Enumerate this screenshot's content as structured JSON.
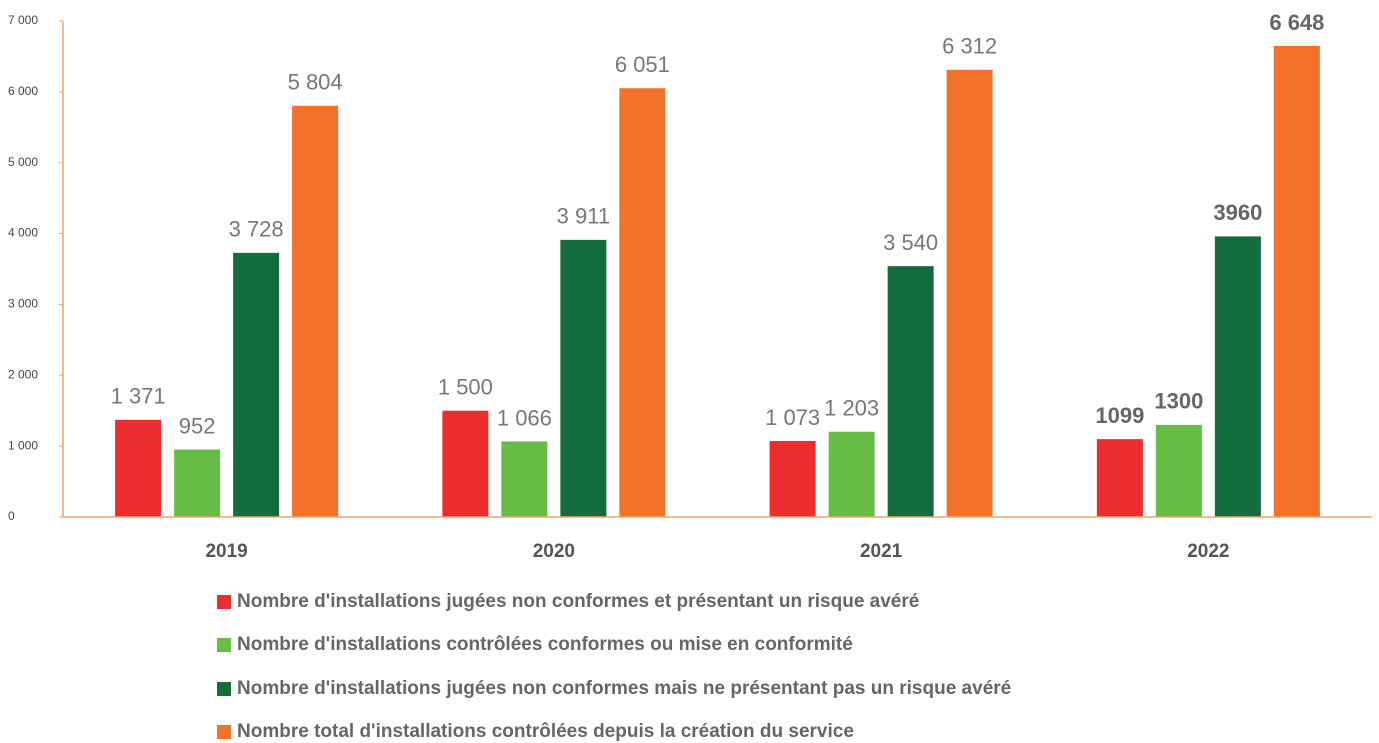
{
  "chart_data": {
    "type": "bar",
    "categories": [
      "2019",
      "2020",
      "2021",
      "2022"
    ],
    "series": [
      {
        "name": "Nombre d'installations jugées non conformes et présentant un risque avéré",
        "color": "#ec2d2f",
        "values": [
          1371,
          1500,
          1073,
          1099
        ],
        "value_labels": [
          "1 371",
          "1 500",
          "1 073",
          "1099"
        ]
      },
      {
        "name": "Nombre d'installations contrôlées conformes ou mise en conformité",
        "color": "#66bc46",
        "values": [
          952,
          1066,
          1203,
          1300
        ],
        "value_labels": [
          "952",
          "1 066",
          "1 203",
          "1300"
        ]
      },
      {
        "name": "Nombre d'installations jugées non conformes mais ne présentant pas un risque avéré",
        "color": "#126c3b",
        "values": [
          3728,
          3911,
          3540,
          3960
        ],
        "value_labels": [
          "3 728",
          "3 911",
          "3 540",
          "3960"
        ]
      },
      {
        "name": "Nombre total d'installations contrôlées depuis la création du service",
        "color": "#f2722b",
        "values": [
          5804,
          6051,
          6312,
          6648
        ],
        "value_labels": [
          "5 804",
          "6 051",
          "6 312",
          "6 648"
        ]
      }
    ],
    "ylim": [
      0,
      7000
    ],
    "yticks": [
      0,
      {
        "value": 1000,
        "label": "1 000"
      },
      {
        "value": 2000,
        "label": "2 000"
      },
      {
        "value": 3000,
        "label": "3 000"
      },
      {
        "value": 4000,
        "label": "4 000"
      },
      {
        "value": 5000,
        "label": "5 000"
      },
      {
        "value": 6000,
        "label": "6 000"
      },
      {
        "value": 7000,
        "label": "7 000"
      }
    ],
    "axis_color": "#f2a36b",
    "legend": "bottom"
  }
}
